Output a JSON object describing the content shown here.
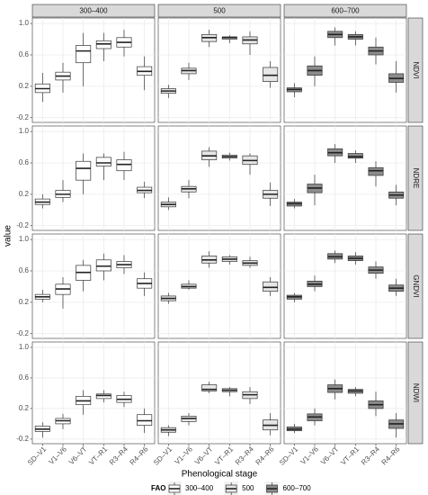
{
  "chart_data": {
    "type": "boxplot",
    "x_label": "Phenological stage",
    "y_label": "value",
    "legend_title": "FAO",
    "categories": [
      "SD–V1",
      "V1–V6",
      "V6–VT",
      "VT–R1",
      "R3–R4",
      "R4–R6"
    ],
    "rows": [
      "NDVI",
      "NDRE",
      "GNDVI",
      "NDWI"
    ],
    "ylim": [
      -0.26,
      1.07
    ],
    "yticks": [
      -0.2,
      0.2,
      0.6,
      {
        "value": 1.0,
        "label": "1.0"
      }
    ],
    "grid": true,
    "legend": "bottom",
    "series": [
      {
        "name": "300–400",
        "color": "#ffffff",
        "data": [
          [
            [
              0.0,
              0.12,
              0.17,
              0.23,
              0.37
            ],
            [
              0.12,
              0.28,
              0.33,
              0.38,
              0.5
            ],
            [
              0.2,
              0.5,
              0.65,
              0.72,
              0.88
            ],
            [
              0.52,
              0.68,
              0.74,
              0.78,
              0.88
            ],
            [
              0.58,
              0.7,
              0.76,
              0.82,
              0.92
            ],
            [
              0.15,
              0.34,
              0.39,
              0.45,
              0.58
            ]
          ],
          [
            [
              0.02,
              0.07,
              0.1,
              0.14,
              0.2
            ],
            [
              0.1,
              0.16,
              0.2,
              0.25,
              0.38
            ],
            [
              0.2,
              0.38,
              0.53,
              0.62,
              0.72
            ],
            [
              0.38,
              0.56,
              0.6,
              0.67,
              0.72
            ],
            [
              0.38,
              0.5,
              0.58,
              0.64,
              0.74
            ],
            [
              0.15,
              0.22,
              0.25,
              0.29,
              0.36
            ]
          ],
          [
            [
              0.2,
              0.24,
              0.27,
              0.3,
              0.36
            ],
            [
              0.12,
              0.3,
              0.37,
              0.43,
              0.52
            ],
            [
              0.34,
              0.48,
              0.58,
              0.67,
              0.74
            ],
            [
              0.48,
              0.6,
              0.66,
              0.74,
              0.82
            ],
            [
              0.56,
              0.64,
              0.68,
              0.72,
              0.8
            ],
            [
              0.28,
              0.38,
              0.44,
              0.5,
              0.58
            ]
          ],
          [
            [
              -0.18,
              -0.1,
              -0.07,
              -0.03,
              0.02
            ],
            [
              -0.07,
              0.0,
              0.04,
              0.07,
              0.13
            ],
            [
              0.12,
              0.25,
              0.3,
              0.36,
              0.44
            ],
            [
              0.28,
              0.33,
              0.37,
              0.39,
              0.44
            ],
            [
              0.22,
              0.28,
              0.32,
              0.37,
              0.42
            ],
            [
              -0.12,
              -0.02,
              0.04,
              0.12,
              0.2
            ]
          ]
        ]
      },
      {
        "name": "500",
        "color": "#e6e6e6",
        "data": [
          [
            [
              0.05,
              0.11,
              0.14,
              0.17,
              0.22
            ],
            [
              0.28,
              0.36,
              0.4,
              0.43,
              0.5
            ],
            [
              0.7,
              0.77,
              0.82,
              0.86,
              0.92
            ],
            [
              0.75,
              0.8,
              0.82,
              0.83,
              0.85
            ],
            [
              0.6,
              0.74,
              0.79,
              0.83,
              0.9
            ],
            [
              0.18,
              0.26,
              0.34,
              0.44,
              0.52
            ]
          ],
          [
            [
              0.0,
              0.04,
              0.07,
              0.1,
              0.16
            ],
            [
              0.15,
              0.23,
              0.27,
              0.3,
              0.38
            ],
            [
              0.55,
              0.64,
              0.69,
              0.75,
              0.8
            ],
            [
              0.63,
              0.66,
              0.68,
              0.7,
              0.73
            ],
            [
              0.45,
              0.58,
              0.63,
              0.69,
              0.72
            ],
            [
              0.05,
              0.15,
              0.2,
              0.25,
              0.35
            ]
          ],
          [
            [
              0.18,
              0.22,
              0.25,
              0.28,
              0.32
            ],
            [
              0.36,
              0.38,
              0.4,
              0.43,
              0.48
            ],
            [
              0.64,
              0.7,
              0.74,
              0.79,
              0.85
            ],
            [
              0.68,
              0.72,
              0.75,
              0.78,
              0.8
            ],
            [
              0.64,
              0.67,
              0.7,
              0.73,
              0.78
            ],
            [
              0.28,
              0.34,
              0.39,
              0.46,
              0.52
            ]
          ],
          [
            [
              -0.16,
              -0.11,
              -0.08,
              -0.05,
              -0.02
            ],
            [
              -0.02,
              0.03,
              0.07,
              0.1,
              0.14
            ],
            [
              0.4,
              0.43,
              0.45,
              0.51,
              0.55
            ],
            [
              0.36,
              0.42,
              0.44,
              0.46,
              0.48
            ],
            [
              0.26,
              0.33,
              0.38,
              0.42,
              0.48
            ],
            [
              -0.15,
              -0.08,
              -0.02,
              0.05,
              0.14
            ]
          ]
        ]
      },
      {
        "name": "600–700",
        "color": "#8c8c8c",
        "data": [
          [
            [
              0.06,
              0.13,
              0.16,
              0.18,
              0.24
            ],
            [
              0.2,
              0.34,
              0.4,
              0.46,
              0.58
            ],
            [
              0.72,
              0.82,
              0.86,
              0.9,
              0.95
            ],
            [
              0.72,
              0.8,
              0.83,
              0.86,
              0.9
            ],
            [
              0.48,
              0.6,
              0.65,
              0.7,
              0.82
            ],
            [
              0.12,
              0.25,
              0.3,
              0.36,
              0.52
            ]
          ],
          [
            [
              0.02,
              0.05,
              0.08,
              0.1,
              0.14
            ],
            [
              0.06,
              0.22,
              0.28,
              0.33,
              0.45
            ],
            [
              0.6,
              0.69,
              0.73,
              0.78,
              0.84
            ],
            [
              0.6,
              0.66,
              0.68,
              0.72,
              0.76
            ],
            [
              0.3,
              0.44,
              0.5,
              0.54,
              0.62
            ],
            [
              0.06,
              0.15,
              0.19,
              0.23,
              0.32
            ]
          ],
          [
            [
              0.2,
              0.24,
              0.27,
              0.29,
              0.32
            ],
            [
              0.34,
              0.4,
              0.43,
              0.47,
              0.54
            ],
            [
              0.7,
              0.75,
              0.78,
              0.82,
              0.86
            ],
            [
              0.68,
              0.73,
              0.76,
              0.79,
              0.84
            ],
            [
              0.5,
              0.57,
              0.61,
              0.65,
              0.72
            ],
            [
              0.28,
              0.34,
              0.38,
              0.42,
              0.5
            ]
          ],
          [
            [
              -0.12,
              -0.09,
              -0.07,
              -0.04,
              0.0
            ],
            [
              -0.02,
              0.04,
              0.09,
              0.13,
              0.2
            ],
            [
              0.32,
              0.41,
              0.46,
              0.51,
              0.58
            ],
            [
              0.36,
              0.4,
              0.43,
              0.45,
              0.48
            ],
            [
              0.1,
              0.2,
              0.25,
              0.3,
              0.42
            ],
            [
              -0.18,
              -0.06,
              0.0,
              0.05,
              0.14
            ]
          ]
        ]
      }
    ]
  }
}
